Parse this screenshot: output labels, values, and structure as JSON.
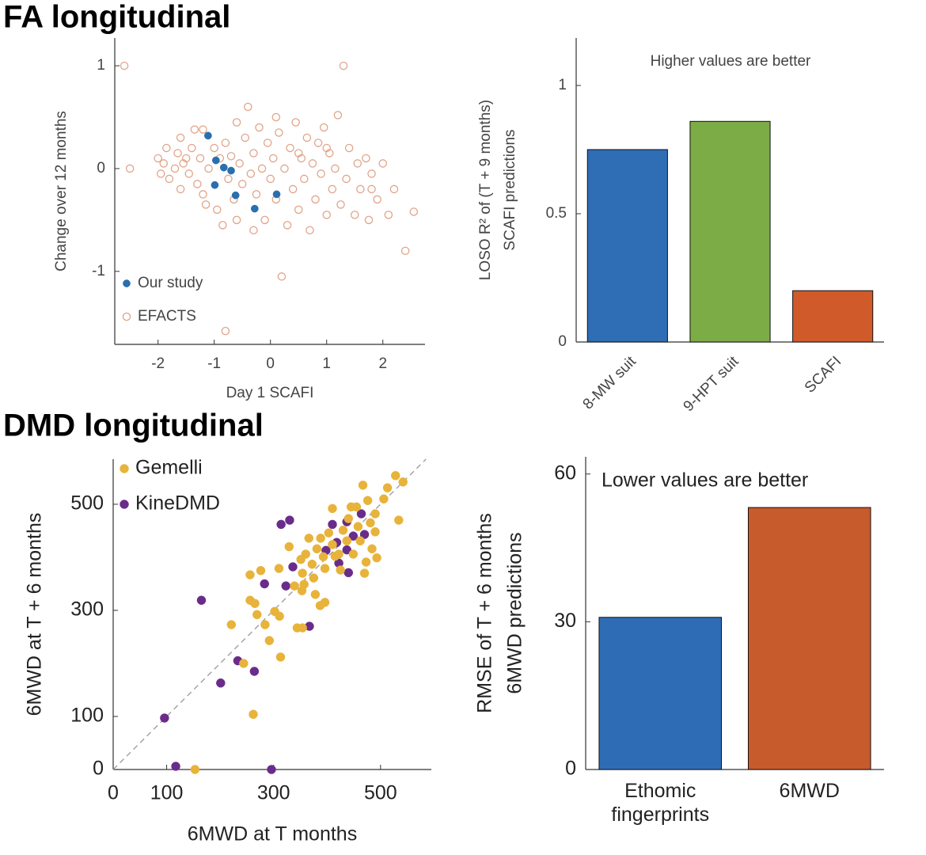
{
  "sections": [
    "FA longitudinal",
    "DMD longitudinal"
  ],
  "chart_data": [
    {
      "type": "scatter",
      "xlabel": "Day 1 SCAFI",
      "ylabel": [
        "Change over 12 months"
      ],
      "xlim": [
        -2.77,
        2.75
      ],
      "ylim": [
        -1.71,
        1.27
      ],
      "xticks": [
        -2,
        -1,
        0,
        1,
        2
      ],
      "yticks": [
        -1,
        0,
        1
      ],
      "series": [
        {
          "name": "Our study",
          "color": "#2a6fad",
          "marker": "filled",
          "x": [
            -1.11,
            -0.97,
            -0.99,
            -0.83,
            -0.7,
            -0.62,
            -0.28,
            0.11
          ],
          "values": [
            0.32,
            0.08,
            -0.16,
            0.01,
            -0.02,
            -0.26,
            -0.39,
            -0.25
          ]
        },
        {
          "name": "EFACTS",
          "color": "#e2a488",
          "marker": "open",
          "x": [
            -2.6,
            -2.5,
            -2.0,
            -1.95,
            -1.9,
            -1.85,
            -1.8,
            -1.7,
            -1.65,
            -1.6,
            -1.55,
            -1.5,
            -1.45,
            -1.4,
            -1.35,
            -1.3,
            -1.25,
            -1.2,
            -1.15,
            -1.1,
            -1.0,
            -0.95,
            -0.9,
            -0.85,
            -0.8,
            -0.75,
            -0.7,
            -0.65,
            -0.6,
            -0.55,
            -0.5,
            -0.45,
            -0.4,
            -0.35,
            -0.3,
            -0.25,
            -0.2,
            -0.15,
            -0.1,
            -0.05,
            0.0,
            0.05,
            0.1,
            0.15,
            0.2,
            0.25,
            0.3,
            0.35,
            0.4,
            0.45,
            0.5,
            0.55,
            0.6,
            0.65,
            0.7,
            0.75,
            0.8,
            0.85,
            0.9,
            0.95,
            1.0,
            1.05,
            1.1,
            1.15,
            1.2,
            1.25,
            1.3,
            1.35,
            1.4,
            1.5,
            1.55,
            1.6,
            1.7,
            1.75,
            1.8,
            1.9,
            2.0,
            2.1,
            2.2,
            2.4,
            2.55,
            -0.8,
            -1.2,
            -0.3,
            0.5,
            1.0,
            -1.6,
            0.1,
            1.8,
            -0.6
          ],
          "values": [
            1.0,
            0.0,
            0.1,
            -0.05,
            0.05,
            0.2,
            -0.1,
            0.0,
            0.15,
            -0.2,
            0.05,
            0.1,
            -0.05,
            0.2,
            0.38,
            -0.15,
            0.1,
            0.38,
            -0.35,
            0.0,
            0.2,
            -0.4,
            0.1,
            -0.55,
            0.25,
            -0.1,
            0.12,
            -0.3,
            0.45,
            0.05,
            -0.15,
            0.3,
            0.6,
            -0.05,
            0.15,
            -0.25,
            0.4,
            0.0,
            -0.5,
            0.25,
            -0.1,
            0.1,
            -0.3,
            0.35,
            -1.05,
            0.0,
            -0.55,
            0.2,
            -0.2,
            0.45,
            -0.4,
            0.1,
            -0.1,
            0.3,
            -0.6,
            0.05,
            -0.3,
            0.25,
            -0.05,
            0.4,
            -0.45,
            0.15,
            -0.2,
            0.0,
            0.52,
            -0.35,
            1.0,
            -0.1,
            0.2,
            -0.45,
            0.05,
            -0.2,
            0.1,
            -0.5,
            -0.05,
            -0.3,
            0.05,
            -0.45,
            -0.2,
            -0.8,
            -0.42,
            -1.58,
            -0.25,
            -0.6,
            0.15,
            0.2,
            0.3,
            0.5,
            -0.2,
            -0.5
          ]
        }
      ]
    },
    {
      "type": "bar",
      "annotation": "Higher values are better",
      "ylabel": [
        "LOSO R² of (T + 9 months)",
        "SCAFI predictions"
      ],
      "categories": [
        "8-MW suit",
        "9-HPT suit",
        "SCAFI"
      ],
      "values": [
        0.75,
        0.86,
        0.2
      ],
      "colors": [
        "#2f6db5",
        "#7cac45",
        "#d05a2a"
      ],
      "ylim": [
        0,
        1.185
      ],
      "yticks": [
        0,
        0.5,
        1
      ]
    },
    {
      "type": "scatter",
      "xlabel": "6MWD at T months",
      "ylabel": [
        "6MWD at T + 6 months"
      ],
      "xlim": [
        0,
        595
      ],
      "ylim": [
        0,
        585
      ],
      "xticks": [
        0,
        100,
        300,
        500
      ],
      "yticks": [
        0,
        100,
        300,
        500
      ],
      "series": [
        {
          "name": "Gemelli",
          "color": "#e8b33a",
          "marker": "filled",
          "x": [
            153,
            262,
            221,
            244,
            256,
            265,
            256,
            292,
            313,
            311,
            302,
            344,
            354,
            310,
            339,
            353,
            354,
            360,
            372,
            381,
            393,
            388,
            396,
            403,
            410,
            415,
            422,
            430,
            437,
            440,
            445,
            449,
            458,
            462,
            470,
            476,
            481,
            484,
            490,
            493,
            506,
            513,
            528,
            534,
            542,
            467,
            490,
            366,
            351,
            329,
            396,
            387,
            357,
            269,
            284,
            276,
            410,
            425,
            455,
            473,
            375,
            378
          ],
          "values": [
            0,
            104,
            273,
            200,
            319,
            313,
            367,
            243,
            212,
            289,
            298,
            267,
            267,
            379,
            346,
            337,
            370,
            406,
            387,
            416,
            401,
            436,
            379,
            446,
            492,
            402,
            406,
            451,
            431,
            473,
            495,
            406,
            458,
            431,
            370,
            507,
            465,
            416,
            448,
            399,
            510,
            531,
            554,
            470,
            542,
            536,
            482,
            436,
            396,
            420,
            315,
            309,
            349,
            292,
            273,
            375,
            424,
            376,
            495,
            391,
            361,
            330
          ]
        },
        {
          "name": "KineDMD",
          "color": "#6a2c8a",
          "marker": "filled",
          "x": [
            96,
            117,
            165,
            201,
            233,
            264,
            296,
            314,
            283,
            323,
            336,
            367,
            330,
            398,
            418,
            422,
            437,
            449,
            437,
            470,
            464,
            440,
            410
          ],
          "values": [
            97,
            6,
            319,
            163,
            205,
            185,
            0,
            462,
            350,
            346,
            382,
            270,
            470,
            413,
            428,
            389,
            414,
            440,
            467,
            443,
            482,
            371,
            462
          ]
        }
      ]
    },
    {
      "type": "bar",
      "annotation": "Lower values are better",
      "ylabel": [
        "RMSE of T + 6 months",
        "6MWD predictions"
      ],
      "categories": [
        "Ethomic fingerprints",
        "6MWD"
      ],
      "values": [
        30.9,
        53.2
      ],
      "colors": [
        "#2e6db5",
        "#c85b2c"
      ],
      "ylim": [
        0,
        63.5
      ],
      "yticks": [
        0,
        30,
        60
      ]
    }
  ]
}
